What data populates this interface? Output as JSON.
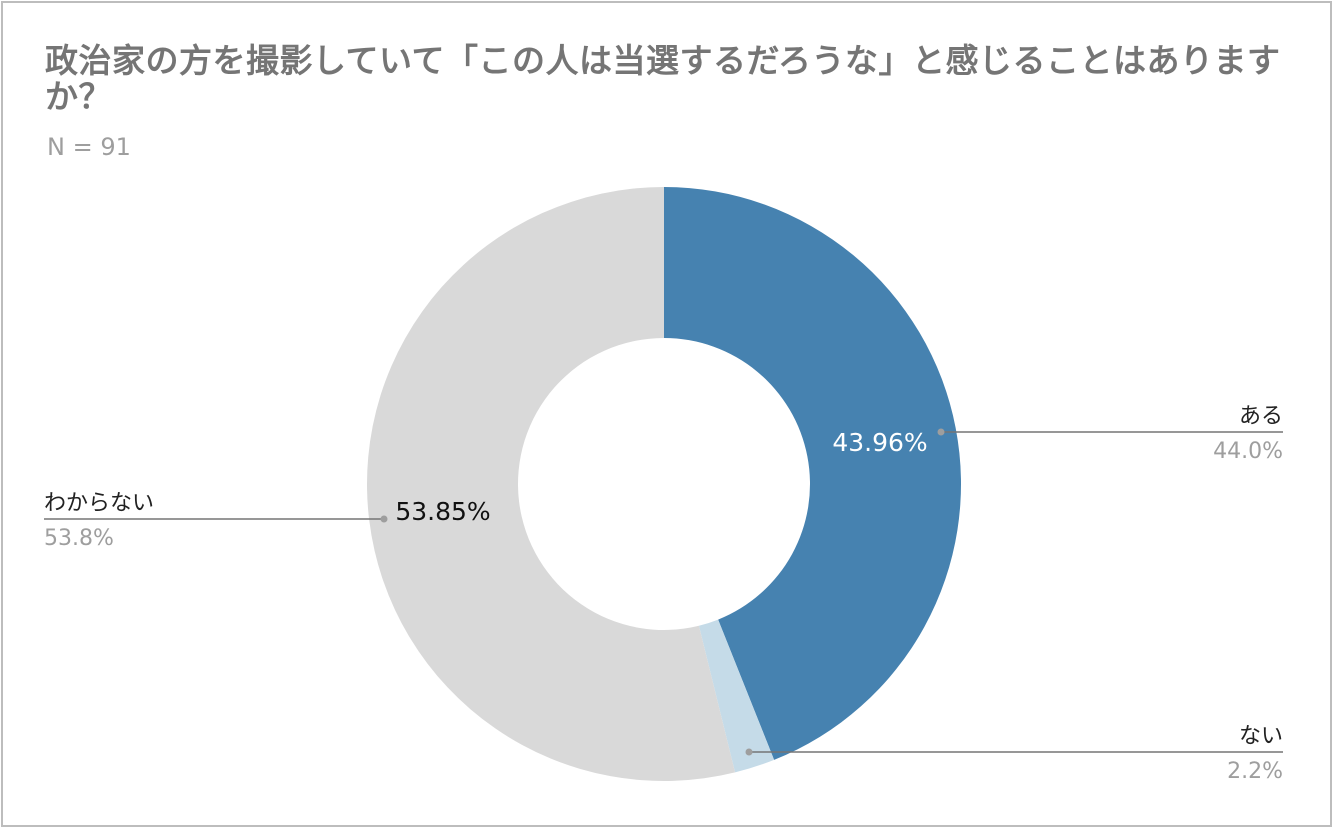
{
  "chart_data": {
    "type": "pie",
    "style": "donut",
    "title": "政治家の方を撮影していて「この人は当選するだろうな」と感じることはありますか？",
    "subtitle": "N = 91",
    "slices": [
      {
        "label": "ある",
        "value": 43.96,
        "inner_label": "43.96%",
        "outer_label": "44.0%",
        "color": "#4682b0",
        "inner_text_color": "#ffffff"
      },
      {
        "label": "ない",
        "value": 2.2,
        "inner_label": "",
        "outer_label": "2.2%",
        "color": "#c5dbe8",
        "inner_text_color": "#222222"
      },
      {
        "label": "わからない",
        "value": 53.85,
        "inner_label": "53.85%",
        "outer_label": "53.8%",
        "color": "#d9d9d9",
        "inner_text_color": "#111111"
      }
    ],
    "legend": "none"
  }
}
